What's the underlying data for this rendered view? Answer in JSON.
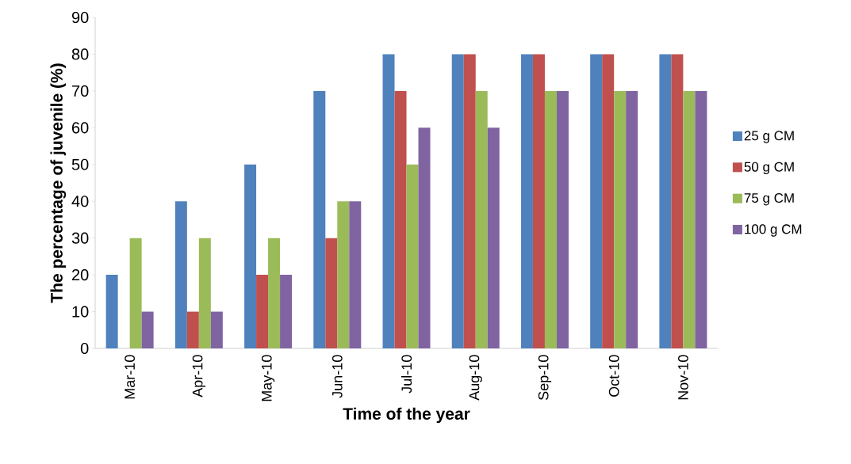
{
  "chart_data": {
    "type": "bar",
    "xlabel": "Time of the year",
    "ylabel": "The percentage of juvenile (%)",
    "categories": [
      "Mar-10",
      "Apr-10",
      "May-10",
      "Jun-10",
      "Jul-10",
      "Aug-10",
      "Sep-10",
      "Oct-10",
      "Nov-10"
    ],
    "series": [
      {
        "name": "25 g CM",
        "color": "#4f81bd",
        "values": [
          20,
          40,
          50,
          70,
          80,
          80,
          80,
          80,
          80
        ]
      },
      {
        "name": "50 g CM",
        "color": "#c0504d",
        "values": [
          0,
          10,
          20,
          30,
          70,
          80,
          80,
          80,
          80
        ]
      },
      {
        "name": "75 g CM",
        "color": "#9bbb59",
        "values": [
          30,
          30,
          30,
          40,
          50,
          70,
          70,
          70,
          70
        ]
      },
      {
        "name": "100 g CM",
        "color": "#8064a2",
        "values": [
          10,
          10,
          20,
          40,
          60,
          60,
          70,
          70,
          70
        ]
      }
    ],
    "ylim": [
      0,
      90
    ],
    "yticks": [
      0,
      10,
      20,
      30,
      40,
      50,
      60,
      70,
      80,
      90
    ],
    "legend": "right"
  }
}
